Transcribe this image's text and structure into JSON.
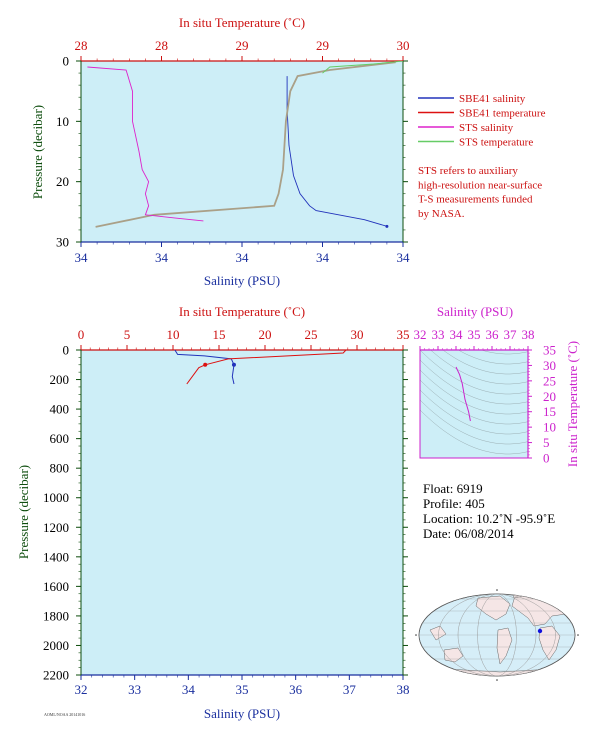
{
  "colors": {
    "panel_bg": "#cdeef7",
    "salinity_axis": "#1a2f9e",
    "temperature_axis": "#cc1111",
    "pressure_axis": "#0d4d0d",
    "sbe41_salinity": "#2233bb",
    "sbe41_temperature": "#dd1111",
    "sts_salinity": "#dd22cc",
    "sts_temperature": "#66cc66",
    "inset_axis": "#cc22cc",
    "inset_trace": "#cc22cc",
    "map_land": "#f5e6e6",
    "map_ocean": "#d6eef8",
    "map_marker": "#1111dd"
  },
  "top_chart": {
    "temp_axis_title": "In situ Temperature (˚C)",
    "temp_ticks": [
      "28",
      "28",
      "29",
      "29",
      "30"
    ],
    "salinity_axis_title": "Salinity (PSU)",
    "salinity_ticks": [
      "34",
      "34",
      "34",
      "34",
      "34"
    ],
    "pressure_axis_title": "Pressure (decibar)",
    "pressure_ticks": [
      "0",
      "10",
      "20",
      "30"
    ],
    "legend": [
      {
        "label": "SBE41 salinity",
        "color_key": "sbe41_salinity"
      },
      {
        "label": "SBE41 temperature",
        "color_key": "sbe41_temperature"
      },
      {
        "label": "STS salinity",
        "color_key": "sts_salinity"
      },
      {
        "label": "STS temperature",
        "color_key": "sts_temperature"
      }
    ],
    "note_lines": [
      "STS refers to auxiliary",
      "high-resolution near-surface",
      "T-S measurements funded",
      "by NASA."
    ]
  },
  "bottom_chart": {
    "temp_axis_title": "In situ Temperature (˚C)",
    "temp_ticks": [
      "0",
      "5",
      "10",
      "15",
      "20",
      "25",
      "30",
      "35"
    ],
    "salinity_axis_title": "Salinity (PSU)",
    "salinity_ticks": [
      "32",
      "33",
      "34",
      "35",
      "36",
      "37",
      "38"
    ],
    "pressure_axis_title": "Pressure (decibar)",
    "pressure_ticks": [
      "0",
      "200",
      "400",
      "600",
      "800",
      "1000",
      "1200",
      "1400",
      "1600",
      "1800",
      "2000",
      "2200"
    ]
  },
  "inset_chart": {
    "salinity_axis_title": "Salinity (PSU)",
    "salinity_ticks": [
      "32",
      "33",
      "34",
      "35",
      "36",
      "37",
      "38"
    ],
    "temp_axis_title": "In situ Temperature (˚C)",
    "temp_ticks": [
      "0",
      "5",
      "10",
      "15",
      "20",
      "25",
      "30",
      "35"
    ]
  },
  "float_info": {
    "float_line": "Float:  6919",
    "profile_line": "Profile:  405",
    "location_line": "Location:  10.2˚N  -95.9˚E",
    "date_line": "Date:  06/08/2014"
  },
  "footer_text": "AOML/NOAA 20141016",
  "chart_data": [
    {
      "type": "line",
      "title": "",
      "x_top_label": "In situ Temperature (˚C)",
      "x_bottom_label": "Salinity (PSU)",
      "ylabel": "Pressure (decibar)",
      "ylim": [
        30,
        0
      ],
      "y_inverted": true,
      "x_top_range": [
        27.8,
        30
      ],
      "x_bottom_range": [
        33.8,
        34.3
      ],
      "series": [
        {
          "name": "SBE41 salinity",
          "axis": "salinity",
          "x": [
            34.12,
            34.12,
            34.123,
            34.13,
            34.14,
            34.155,
            34.165,
            34.2,
            34.24,
            34.275
          ],
          "y": [
            2.5,
            8,
            14,
            19,
            22,
            24,
            24.8,
            25.5,
            26.3,
            27.4
          ]
        },
        {
          "name": "SBE41 temperature",
          "axis": "temperature",
          "x": [
            29.95,
            29.5,
            29.28,
            29.23,
            29.2,
            29.18,
            29.15,
            29.12,
            28.3,
            27.9
          ],
          "y": [
            0.2,
            1.5,
            2.5,
            5,
            10,
            18,
            22,
            24,
            25.5,
            27.5
          ]
        },
        {
          "name": "STS salinity",
          "axis": "salinity",
          "x": [
            33.81,
            33.87,
            33.88,
            33.88,
            33.89,
            33.895,
            33.905,
            33.9,
            33.905,
            33.9,
            33.945,
            33.99
          ],
          "y": [
            1,
            1.5,
            5,
            10,
            15,
            18,
            20,
            22,
            24,
            25.5,
            26,
            26.5
          ]
        },
        {
          "name": "STS temperature",
          "axis": "temperature",
          "x": [
            30.0,
            29.8,
            29.5,
            29.45
          ],
          "y": [
            0.0,
            0.5,
            1.0,
            2.0
          ]
        }
      ]
    },
    {
      "type": "line",
      "title": "",
      "x_top_label": "In situ Temperature (˚C)",
      "x_bottom_label": "Salinity (PSU)",
      "ylabel": "Pressure (decibar)",
      "ylim": [
        2200,
        0
      ],
      "y_inverted": true,
      "x_top_range": [
        0,
        35
      ],
      "x_bottom_range": [
        32,
        38
      ],
      "series": [
        {
          "name": "SBE41 salinity",
          "axis": "salinity",
          "x": [
            33.75,
            33.8,
            34.3,
            34.8,
            34.85,
            34.82,
            34.85
          ],
          "y": [
            0,
            30,
            40,
            60,
            100,
            180,
            230
          ]
        },
        {
          "name": "SBE41 temperature",
          "axis": "temperature",
          "x": [
            28.8,
            28.5,
            16,
            13.5,
            12.8,
            11.5
          ],
          "y": [
            0,
            20,
            60,
            100,
            120,
            230
          ]
        }
      ]
    },
    {
      "type": "scatter",
      "title": "",
      "xlabel": "Salinity (PSU)",
      "ylabel": "In situ Temperature (˚C)",
      "xlim": [
        32,
        38
      ],
      "ylim": [
        0,
        35
      ],
      "series": [
        {
          "name": "T-S",
          "x": [
            34.0,
            34.2,
            34.35,
            34.5,
            34.7,
            34.8
          ],
          "y": [
            29.5,
            27,
            24,
            19,
            15,
            12
          ]
        }
      ]
    }
  ]
}
